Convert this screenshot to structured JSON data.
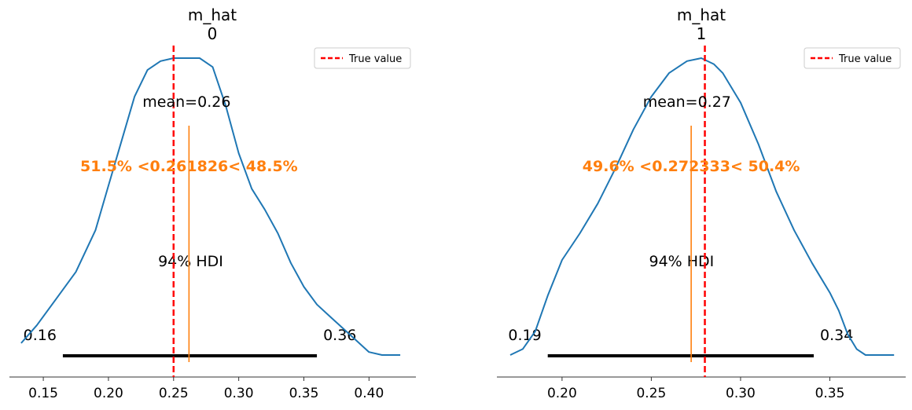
{
  "chart_data": [
    {
      "type": "area",
      "title": "m_hat\n0",
      "title_lines": [
        "m_hat",
        "0"
      ],
      "xlim": [
        0.124,
        0.436
      ],
      "x_ticks": [
        0.15,
        0.2,
        0.25,
        0.3,
        0.35,
        0.4
      ],
      "x_tick_labels": [
        "0.15",
        "0.20",
        "0.25",
        "0.30",
        "0.35",
        "0.40"
      ],
      "density": {
        "x": [
          0.133,
          0.145,
          0.16,
          0.175,
          0.19,
          0.2,
          0.21,
          0.22,
          0.23,
          0.24,
          0.25,
          0.26,
          0.27,
          0.28,
          0.29,
          0.3,
          0.31,
          0.32,
          0.33,
          0.34,
          0.35,
          0.36,
          0.37,
          0.38,
          0.39,
          0.4,
          0.41,
          0.424
        ],
        "density_fraction": [
          0.04,
          0.1,
          0.19,
          0.28,
          0.42,
          0.57,
          0.72,
          0.87,
          0.96,
          0.99,
          1.0,
          1.0,
          1.0,
          0.97,
          0.84,
          0.68,
          0.56,
          0.49,
          0.41,
          0.31,
          0.23,
          0.17,
          0.13,
          0.09,
          0.05,
          0.01,
          0.0,
          0.0
        ]
      },
      "mean": 0.26,
      "mean_label": "mean=0.26",
      "point_estimate": 0.261826,
      "ref_line": {
        "value": 0.261826,
        "label": "51.5% <0.261826< 48.5%",
        "pct_below": "51.5%",
        "pct_above": "48.5%",
        "color": "#ff7f0e"
      },
      "true_value": 0.25,
      "hdi": {
        "prob_label": "94% HDI",
        "low": 0.165,
        "high": 0.36,
        "low_label": "0.16",
        "high_label": "0.36"
      },
      "legend": {
        "label": "True value",
        "placement": "top-right"
      }
    },
    {
      "type": "area",
      "title": "m_hat\n1",
      "title_lines": [
        "m_hat",
        "1"
      ],
      "xlim": [
        0.1635,
        0.3925
      ],
      "x_ticks": [
        0.2,
        0.25,
        0.3,
        0.35
      ],
      "x_tick_labels": [
        "0.20",
        "0.25",
        "0.30",
        "0.35"
      ],
      "density": {
        "x": [
          0.171,
          0.178,
          0.185,
          0.192,
          0.2,
          0.21,
          0.22,
          0.23,
          0.24,
          0.25,
          0.26,
          0.27,
          0.278,
          0.285,
          0.29,
          0.3,
          0.31,
          0.32,
          0.33,
          0.34,
          0.345,
          0.35,
          0.355,
          0.36,
          0.365,
          0.37,
          0.38,
          0.386
        ],
        "density_fraction": [
          0.0,
          0.02,
          0.08,
          0.2,
          0.32,
          0.41,
          0.51,
          0.63,
          0.76,
          0.87,
          0.95,
          0.99,
          1.0,
          0.98,
          0.95,
          0.85,
          0.71,
          0.55,
          0.42,
          0.31,
          0.26,
          0.21,
          0.15,
          0.07,
          0.02,
          0.0,
          0.0,
          0.0
        ]
      },
      "mean": 0.27,
      "mean_label": "mean=0.27",
      "point_estimate": 0.272333,
      "ref_line": {
        "value": 0.272333,
        "label": "49.6% <0.272333< 50.4%",
        "pct_below": "49.6%",
        "pct_above": "50.4%",
        "color": "#ff7f0e"
      },
      "true_value": 0.28,
      "hdi": {
        "prob_label": "94% HDI",
        "low": 0.192,
        "high": 0.341,
        "low_label": "0.19",
        "high_label": "0.34"
      },
      "legend": {
        "label": "True value",
        "placement": "top-right"
      }
    }
  ],
  "colors": {
    "density_line": "#1f77b4",
    "true_value_line": "#ff0000",
    "ref_line": "#ff7f0e",
    "hdi_bar": "#000000",
    "axis": "#333333"
  }
}
